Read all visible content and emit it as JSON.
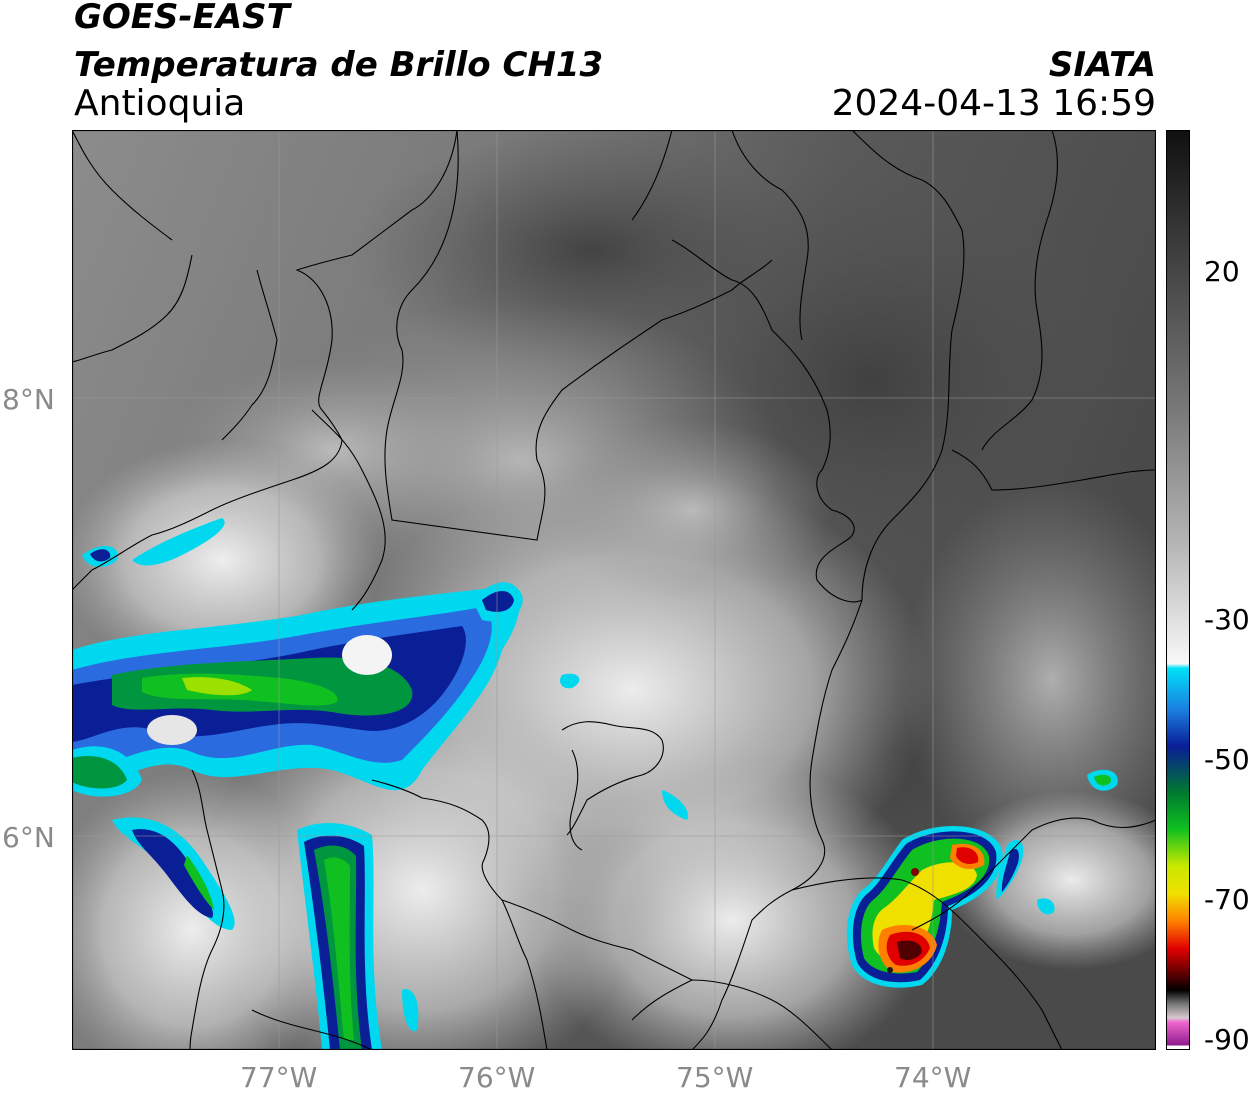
{
  "header": {
    "title": "GOES-EAST",
    "subtitle": "Temperatura de Brillo CH13",
    "region": "Antioquia",
    "agency": "SIATA",
    "timestamp": "2024-04-13 16:59"
  },
  "axes": {
    "lon_ticks": [
      "77°W",
      "76°W",
      "75°W",
      "74°W"
    ],
    "lat_ticks": [
      "8°N",
      "6°N"
    ]
  },
  "colorbar": {
    "ticks": [
      "20",
      "-30",
      "-50",
      "-70",
      "-90"
    ],
    "colors": {
      "warm_dark": "#1a1a1a",
      "warm_gray": "#808080",
      "white": "#ffffff",
      "cyan": "#00d8f0",
      "blue": "#0a1e96",
      "green": "#10c020",
      "yellow": "#f0e000",
      "orange": "#ff8000",
      "red": "#e00000",
      "dark_red": "#500000",
      "pink": "#ee66cc",
      "purple": "#8e1a8e"
    }
  }
}
